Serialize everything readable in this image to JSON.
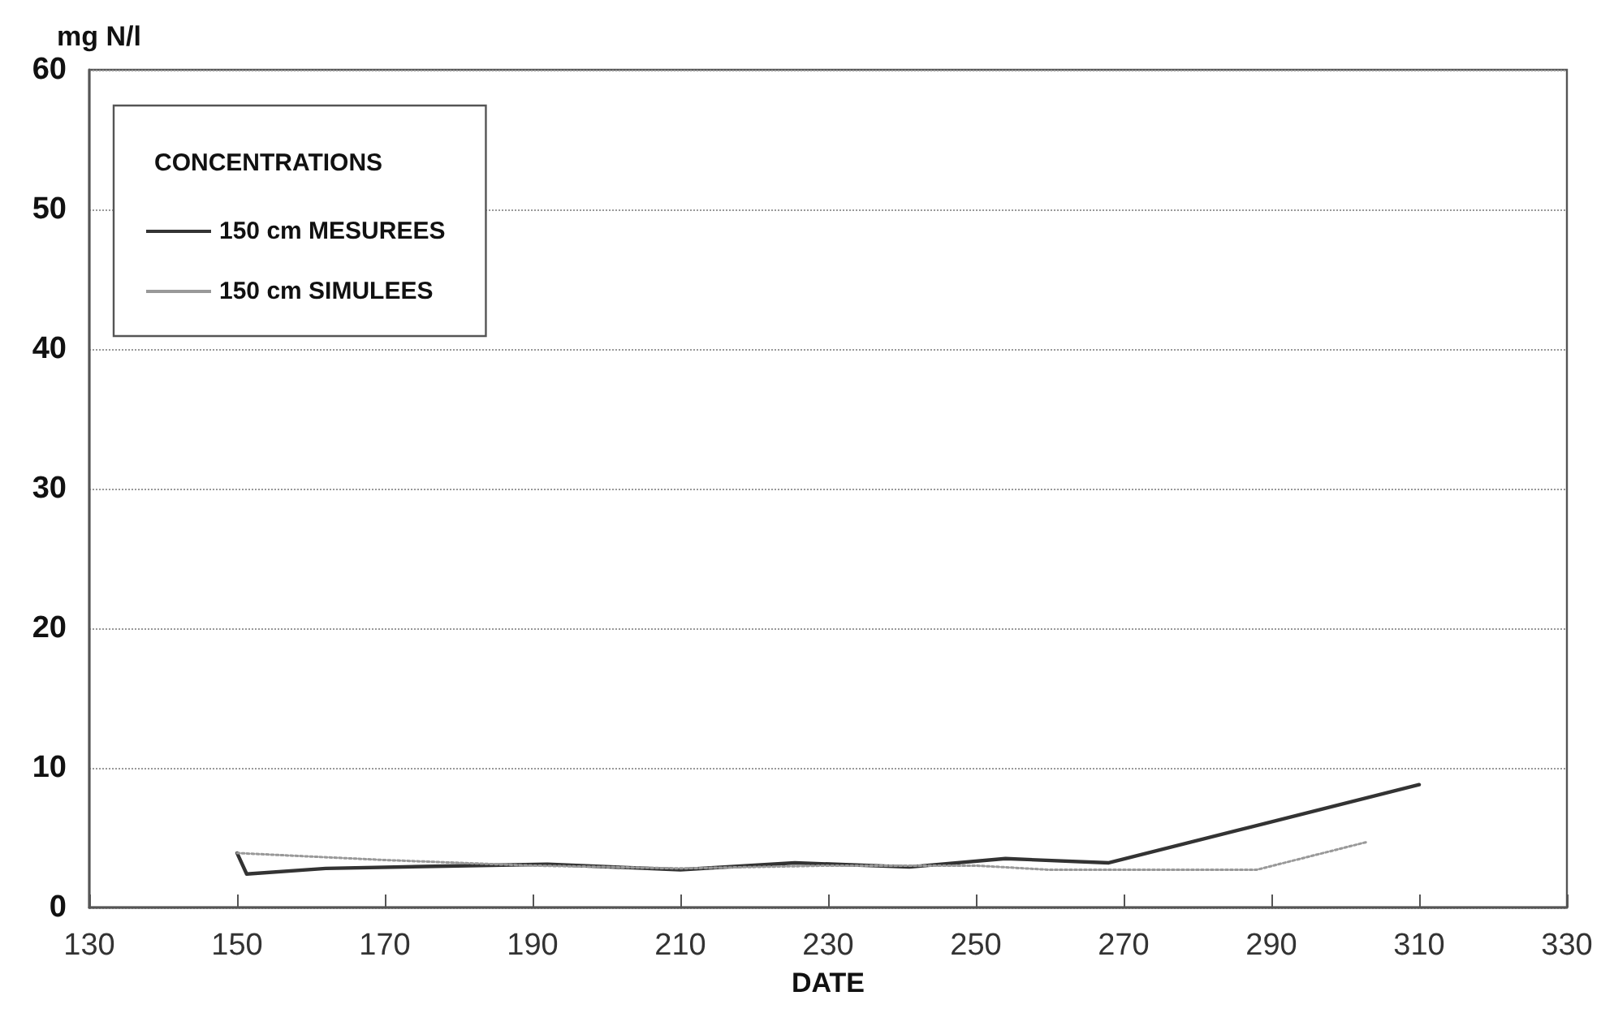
{
  "chart_data": {
    "type": "line",
    "xlabel": "DATE",
    "ylabel": "mg N/l",
    "legend_title": "CONCENTRATIONS",
    "xlim": [
      130,
      330
    ],
    "xticks": [
      130,
      150,
      170,
      190,
      210,
      230,
      250,
      270,
      290,
      310,
      330
    ],
    "ylim": [
      0,
      60
    ],
    "yticks": [
      0,
      10,
      20,
      30,
      40,
      50,
      60
    ],
    "grid": "y",
    "legend": "top left",
    "marker": "none",
    "series": [
      {
        "name": "150 cm MESUREES",
        "color": "#333333",
        "line_style": "solid",
        "x": [
          150,
          151.3,
          162,
          192,
          210,
          225.5,
          241,
          254,
          268,
          310
        ],
        "values": [
          3.9,
          2.4,
          2.8,
          3.1,
          2.7,
          3.2,
          2.9,
          3.5,
          3.2,
          8.8
        ]
      },
      {
        "name": "150 cm SIMULEES",
        "color": "#999999",
        "line_style": "dotted",
        "x": [
          150,
          170,
          190,
          210,
          230,
          250,
          260,
          288,
          303
        ],
        "values": [
          3.9,
          3.4,
          3.0,
          2.8,
          3.0,
          3.0,
          2.7,
          2.7,
          4.7
        ]
      }
    ]
  }
}
